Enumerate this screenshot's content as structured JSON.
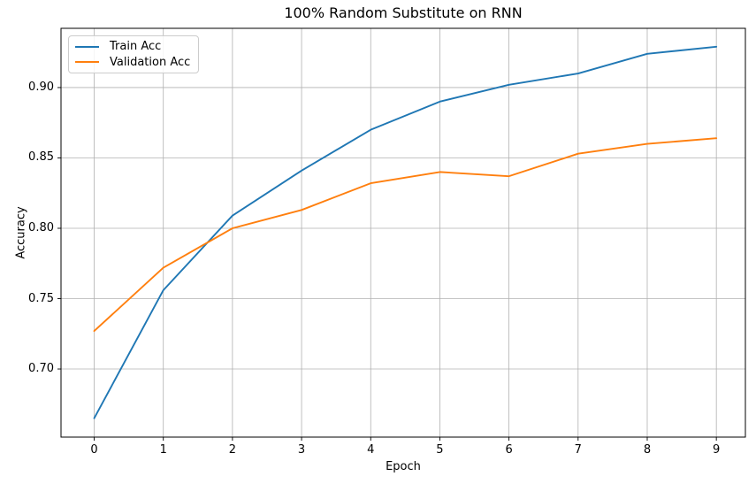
{
  "chart_data": {
    "type": "line",
    "title": "100% Random Substitute on RNN",
    "xlabel": "Epoch",
    "ylabel": "Accuracy",
    "x": [
      0,
      1,
      2,
      3,
      4,
      5,
      6,
      7,
      8,
      9
    ],
    "series": [
      {
        "name": "Train Acc",
        "color": "#1f77b4",
        "values": [
          0.665,
          0.756,
          0.809,
          0.841,
          0.87,
          0.89,
          0.902,
          0.91,
          0.924,
          0.929
        ]
      },
      {
        "name": "Validation Acc",
        "color": "#ff7f0e",
        "values": [
          0.727,
          0.772,
          0.8,
          0.813,
          0.832,
          0.84,
          0.837,
          0.853,
          0.86,
          0.864
        ]
      }
    ],
    "xticks": {
      "values": [
        0,
        1,
        2,
        3,
        4,
        5,
        6,
        7,
        8,
        9
      ],
      "labels": [
        "0",
        "1",
        "2",
        "3",
        "4",
        "5",
        "6",
        "7",
        "8",
        "9"
      ]
    },
    "yticks": {
      "values": [
        0.7,
        0.75,
        0.8,
        0.85,
        0.9
      ],
      "labels": [
        "0.70",
        "0.75",
        "0.80",
        "0.85",
        "0.90"
      ]
    },
    "xlim": [
      -0.48,
      9.42
    ],
    "ylim": [
      0.6516,
      0.9421
    ],
    "grid": true,
    "legend_position": "upper-left",
    "colors": {
      "grid": "#b0b0b0",
      "spine": "#000000",
      "background": "#ffffff",
      "text": "#000000"
    }
  }
}
